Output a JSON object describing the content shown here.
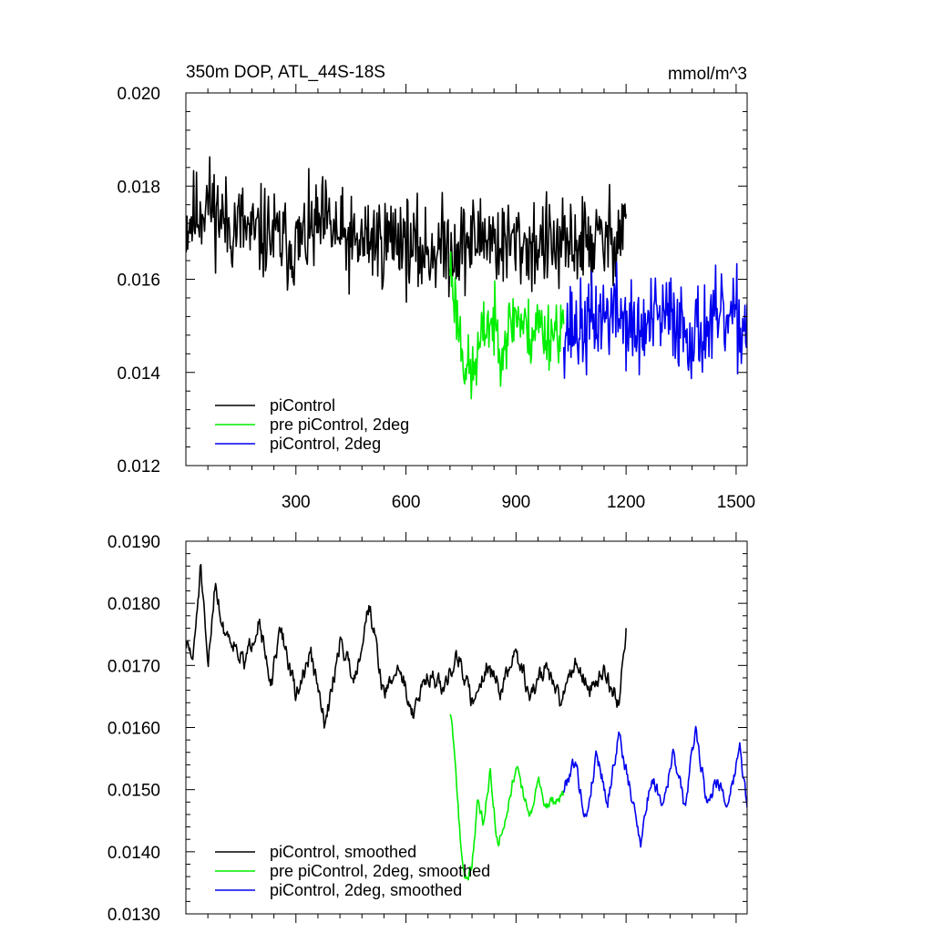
{
  "chart_data": [
    {
      "type": "line",
      "title": "350m DOP, ATL_44S-18S",
      "units": "mmol/m^3",
      "xlim": [
        0,
        1530
      ],
      "ylim": [
        0.012,
        0.02
      ],
      "xticks": [
        300,
        600,
        900,
        1200,
        1500
      ],
      "yticks": [
        0.012,
        0.014,
        0.016,
        0.018,
        0.02
      ],
      "ytick_labels": [
        "0.012",
        "0.014",
        "0.016",
        "0.018",
        "0.020"
      ],
      "grid": false,
      "legend_position": "bottom-left",
      "series": [
        {
          "name": "piControl",
          "color": "#000000",
          "x_range": [
            1,
            1200
          ],
          "style": "noisy",
          "anchors_x": [
            0,
            30,
            60,
            90,
            120,
            150,
            180,
            220,
            260,
            300,
            340,
            380,
            420,
            460,
            500,
            540,
            580,
            620,
            660,
            700,
            740,
            780,
            820,
            860,
            900,
            940,
            980,
            1020,
            1060,
            1100,
            1140,
            1180,
            1200
          ],
          "anchors_y": [
            0.0172,
            0.0174,
            0.0177,
            0.0174,
            0.0171,
            0.0172,
            0.0169,
            0.017,
            0.0168,
            0.0167,
            0.017,
            0.0172,
            0.0169,
            0.0167,
            0.0169,
            0.0168,
            0.017,
            0.0166,
            0.0166,
            0.0167,
            0.0167,
            0.0168,
            0.017,
            0.0167,
            0.0168,
            0.0167,
            0.0168,
            0.0166,
            0.0168,
            0.0168,
            0.0168,
            0.017,
            0.0174
          ],
          "noise_amp": 0.0011,
          "seed": 11
        },
        {
          "name": "pre piControl, 2deg",
          "color": "#00ee00",
          "x_range": [
            720,
            1030
          ],
          "style": "noisy",
          "anchors_x": [
            720,
            740,
            760,
            780,
            800,
            820,
            840,
            860,
            880,
            900,
            920,
            940,
            960,
            980,
            1000,
            1030
          ],
          "anchors_y": [
            0.0163,
            0.0152,
            0.0142,
            0.0139,
            0.0145,
            0.0151,
            0.015,
            0.0146,
            0.0149,
            0.0153,
            0.015,
            0.0148,
            0.0151,
            0.0148,
            0.0149,
            0.015
          ],
          "noise_amp": 0.0008,
          "seed": 23
        },
        {
          "name": "piControl, 2deg",
          "color": "#0000ee",
          "x_range": [
            1030,
            1530
          ],
          "style": "noisy",
          "anchors_x": [
            1030,
            1080,
            1130,
            1180,
            1230,
            1280,
            1330,
            1380,
            1430,
            1480,
            1530
          ],
          "anchors_y": [
            0.015,
            0.0149,
            0.0152,
            0.0153,
            0.0148,
            0.0151,
            0.0152,
            0.0148,
            0.015,
            0.0151,
            0.015
          ],
          "noise_amp": 0.0011,
          "seed": 37
        }
      ]
    },
    {
      "type": "line",
      "xlim": [
        0,
        1530
      ],
      "ylim": [
        0.013,
        0.019
      ],
      "yticks": [
        0.013,
        0.014,
        0.015,
        0.016,
        0.017,
        0.018,
        0.019
      ],
      "ytick_labels": [
        "0.0130",
        "0.0140",
        "0.0150",
        "0.0160",
        "0.0170",
        "0.0180",
        "0.0190"
      ],
      "grid": false,
      "legend_position": "bottom-left",
      "series": [
        {
          "name": "piControl, smoothed",
          "color": "#000000",
          "x_range": [
            1,
            1200
          ],
          "style": "smooth",
          "anchors_x": [
            0,
            20,
            40,
            60,
            80,
            100,
            130,
            160,
            200,
            230,
            260,
            300,
            340,
            380,
            420,
            460,
            500,
            540,
            580,
            620,
            660,
            700,
            740,
            780,
            820,
            860,
            900,
            940,
            980,
            1020,
            1060,
            1100,
            1140,
            1180,
            1200
          ],
          "anchors_y": [
            0.01735,
            0.0171,
            0.0186,
            0.0169,
            0.0184,
            0.0176,
            0.0174,
            0.017,
            0.0178,
            0.0166,
            0.0176,
            0.0165,
            0.0172,
            0.016,
            0.0174,
            0.0168,
            0.018,
            0.0165,
            0.017,
            0.0162,
            0.0169,
            0.0166,
            0.0172,
            0.0164,
            0.017,
            0.0166,
            0.0172,
            0.0165,
            0.017,
            0.0164,
            0.0171,
            0.0166,
            0.0169,
            0.0164,
            0.0176
          ],
          "noise_amp": 0.00055,
          "seed": 51
        },
        {
          "name": "pre piControl, 2deg, smoothed",
          "color": "#00ee00",
          "x_range": [
            720,
            1030
          ],
          "style": "smooth",
          "anchors_x": [
            720,
            735,
            750,
            765,
            780,
            795,
            810,
            830,
            850,
            865,
            880,
            900,
            920,
            940,
            960,
            980,
            1000,
            1030
          ],
          "anchors_y": [
            0.01625,
            0.0154,
            0.014,
            0.0135,
            0.0138,
            0.0148,
            0.0145,
            0.0153,
            0.0141,
            0.0144,
            0.0148,
            0.0154,
            0.0149,
            0.0146,
            0.0152,
            0.0147,
            0.0148,
            0.0149
          ],
          "noise_amp": 0.00035,
          "seed": 63
        },
        {
          "name": "piControl, 2deg, smoothed",
          "color": "#0000ee",
          "x_range": [
            1030,
            1530
          ],
          "style": "smooth",
          "anchors_x": [
            1030,
            1060,
            1090,
            1120,
            1150,
            1180,
            1210,
            1240,
            1270,
            1300,
            1330,
            1360,
            1390,
            1420,
            1450,
            1480,
            1510,
            1530
          ],
          "anchors_y": [
            0.015,
            0.0155,
            0.0145,
            0.0156,
            0.0148,
            0.0159,
            0.015,
            0.0142,
            0.0152,
            0.0148,
            0.0156,
            0.0147,
            0.016,
            0.0148,
            0.0152,
            0.0147,
            0.0157,
            0.0147
          ],
          "noise_amp": 0.00045,
          "seed": 79
        }
      ]
    }
  ]
}
